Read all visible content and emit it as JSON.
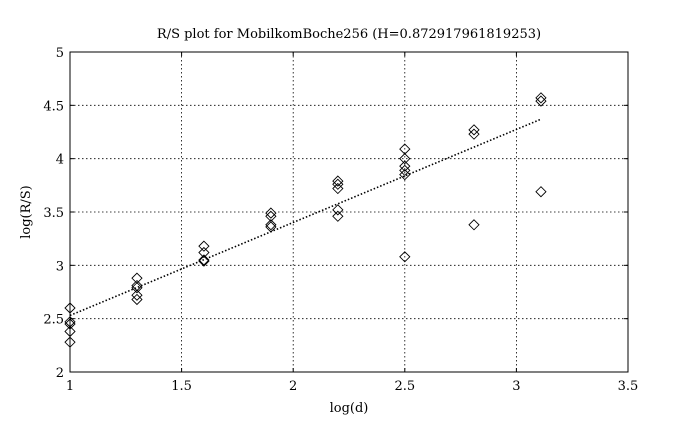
{
  "chart_data": {
    "type": "scatter",
    "title": "R/S plot for MobilkomBoche256 (H=0.872917961819253)",
    "xlabel": "log(d)",
    "ylabel": "log(R/S)",
    "xlim": [
      1,
      3.5
    ],
    "ylim": [
      2,
      5
    ],
    "x_ticks": [
      "1",
      "1.5",
      "2",
      "2.5",
      "3",
      "3.5"
    ],
    "y_ticks": [
      "2",
      "2.5",
      "3",
      "3.5",
      "4",
      "4.5",
      "5"
    ],
    "grid": true,
    "series": [
      {
        "marker": "diamond",
        "points": [
          {
            "x": 1.0,
            "y": 2.6
          },
          {
            "x": 1.0,
            "y": 2.47
          },
          {
            "x": 1.0,
            "y": 2.45
          },
          {
            "x": 1.0,
            "y": 2.38
          },
          {
            "x": 1.0,
            "y": 2.28
          },
          {
            "x": 1.3,
            "y": 2.88
          },
          {
            "x": 1.3,
            "y": 2.81
          },
          {
            "x": 1.3,
            "y": 2.79
          },
          {
            "x": 1.3,
            "y": 2.72
          },
          {
            "x": 1.3,
            "y": 2.68
          },
          {
            "x": 1.6,
            "y": 3.18
          },
          {
            "x": 1.6,
            "y": 3.12
          },
          {
            "x": 1.6,
            "y": 3.05
          },
          {
            "x": 1.6,
            "y": 3.04
          },
          {
            "x": 1.9,
            "y": 3.49
          },
          {
            "x": 1.9,
            "y": 3.46
          },
          {
            "x": 1.9,
            "y": 3.38
          },
          {
            "x": 1.9,
            "y": 3.36
          },
          {
            "x": 2.2,
            "y": 3.79
          },
          {
            "x": 2.2,
            "y": 3.76
          },
          {
            "x": 2.2,
            "y": 3.72
          },
          {
            "x": 2.2,
            "y": 3.52
          },
          {
            "x": 2.2,
            "y": 3.46
          },
          {
            "x": 2.5,
            "y": 4.09
          },
          {
            "x": 2.5,
            "y": 4.0
          },
          {
            "x": 2.5,
            "y": 3.93
          },
          {
            "x": 2.5,
            "y": 3.89
          },
          {
            "x": 2.5,
            "y": 3.85
          },
          {
            "x": 2.5,
            "y": 3.08
          },
          {
            "x": 2.81,
            "y": 4.27
          },
          {
            "x": 2.81,
            "y": 4.23
          },
          {
            "x": 2.81,
            "y": 3.38
          },
          {
            "x": 3.11,
            "y": 4.57
          },
          {
            "x": 3.11,
            "y": 4.54
          },
          {
            "x": 3.11,
            "y": 3.69
          }
        ]
      },
      {
        "style": "dotted-line",
        "points": [
          {
            "x": 1.0,
            "y": 2.53
          },
          {
            "x": 3.11,
            "y": 4.37
          }
        ]
      }
    ]
  }
}
